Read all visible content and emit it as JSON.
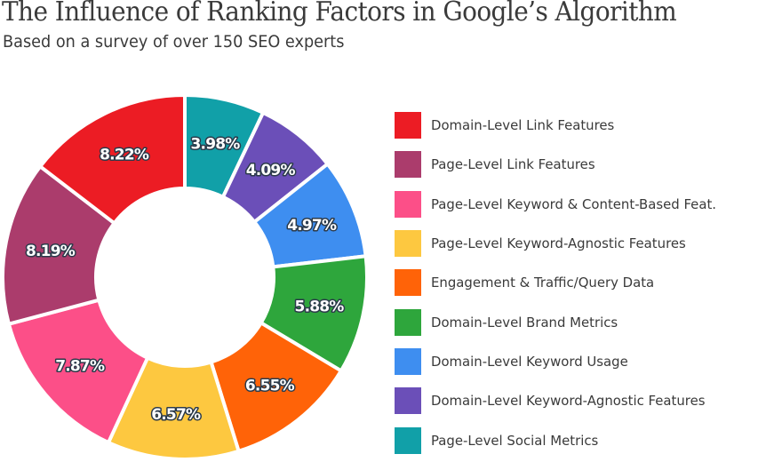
{
  "header": {
    "title": "The Influence of Ranking Factors in Google’s Algorithm",
    "subtitle": "Based on a survey of over 150 SEO experts"
  },
  "chart_data": {
    "type": "pie",
    "subtype": "donut",
    "title": "The Influence of Ranking Factors in Google’s Algorithm",
    "subtitle": "Based on a survey of over 150 SEO experts",
    "legend_position": "right",
    "start_angle": "12 o'clock",
    "direction": "clockwise",
    "slices": [
      {
        "label": "Page-Level Social Metrics",
        "value": 3.98,
        "display": "3.98%",
        "color": "#11a0a8"
      },
      {
        "label": "Domain-Level Keyword-Agnostic Features",
        "value": 4.09,
        "display": "4.09%",
        "color": "#6b4fb8"
      },
      {
        "label": "Domain-Level Keyword Usage",
        "value": 4.97,
        "display": "4.97%",
        "color": "#3e8ef0"
      },
      {
        "label": "Domain-Level Brand Metrics",
        "value": 5.88,
        "display": "5.88%",
        "color": "#2ea63c"
      },
      {
        "label": "Engagement & Traffic/Query Data",
        "value": 6.55,
        "display": "6.55%",
        "color": "#ff6308"
      },
      {
        "label": "Page-Level Keyword-Agnostic Features",
        "value": 6.57,
        "display": "6.57%",
        "color": "#fdc840"
      },
      {
        "label": "Page-Level Keyword & Content-Based Feat.",
        "value": 7.87,
        "display": "7.87%",
        "color": "#fc4f88"
      },
      {
        "label": "Page-Level Link Features",
        "value": 8.19,
        "display": "8.19%",
        "color": "#ab3c6c"
      },
      {
        "label": "Domain-Level Link Features",
        "value": 8.22,
        "display": "8.22%",
        "color": "#ec1c24"
      }
    ]
  },
  "legend": {
    "items": [
      {
        "label": "Domain-Level Link Features",
        "color": "#ec1c24"
      },
      {
        "label": "Page-Level Link Features",
        "color": "#ab3c6c"
      },
      {
        "label": "Page-Level Keyword & Content-Based Feat.",
        "color": "#fc4f88"
      },
      {
        "label": "Page-Level Keyword-Agnostic Features",
        "color": "#fdc840"
      },
      {
        "label": "Engagement & Traffic/Query Data",
        "color": "#ff6308"
      },
      {
        "label": "Domain-Level Brand Metrics",
        "color": "#2ea63c"
      },
      {
        "label": "Domain-Level Keyword Usage",
        "color": "#3e8ef0"
      },
      {
        "label": "Domain-Level Keyword-Agnostic Features",
        "color": "#6b4fb8"
      },
      {
        "label": "Page-Level Social Metrics",
        "color": "#11a0a8"
      }
    ]
  }
}
